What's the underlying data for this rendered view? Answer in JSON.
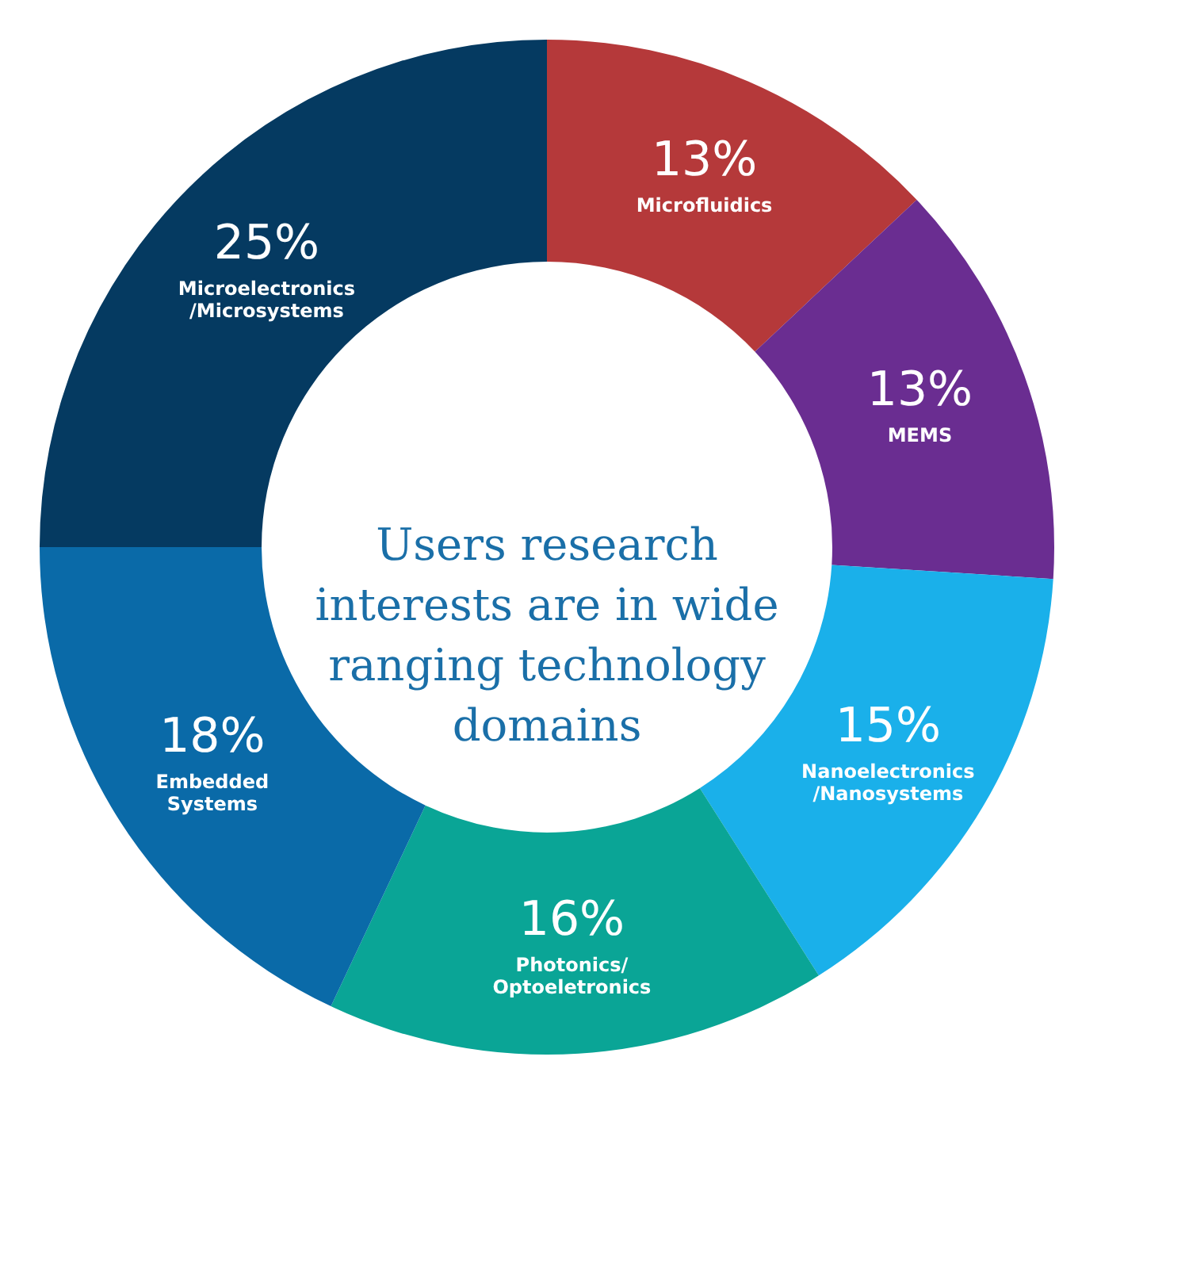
{
  "chart_data": {
    "type": "donut",
    "title": "Users research interests are in wide ranging technology domains",
    "categories": [
      "Microfluidics",
      "MEMS",
      "Nanoelectronics /Nanosystems",
      "Photonics/ Optoeletronics",
      "Embedded Systems",
      "Microelectronics /Microsystems"
    ],
    "values": [
      13,
      13,
      15,
      16,
      18,
      25
    ],
    "value_labels": [
      "13%",
      "13%",
      "15%",
      "16%",
      "18%",
      "25%"
    ],
    "colors": [
      "#b5393a",
      "#6a2d91",
      "#1ab0ea",
      "#0aa596",
      "#0a6aa8",
      "#053a61"
    ],
    "legend": false
  }
}
